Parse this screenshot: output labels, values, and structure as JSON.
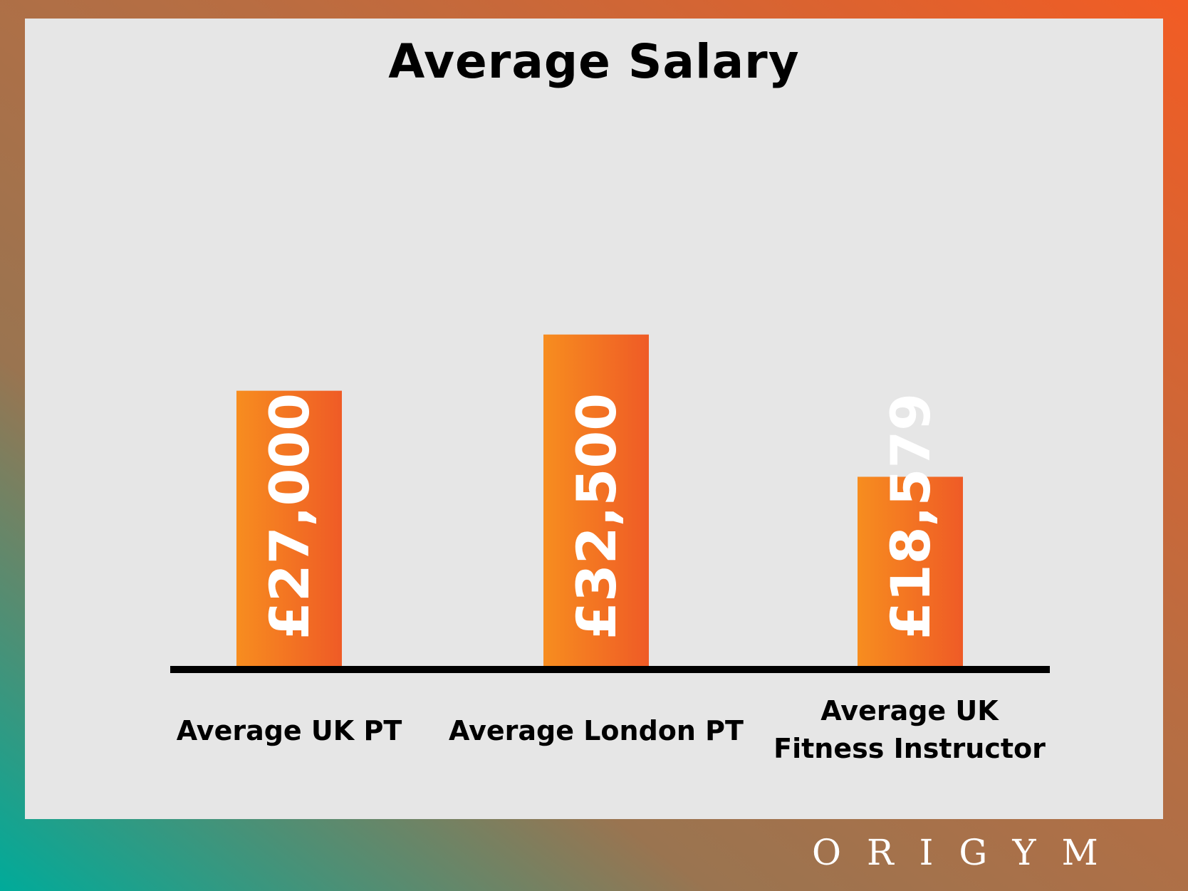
{
  "brand": {
    "logo_text": "ORIGYM"
  },
  "colors": {
    "bar_start": "#f78d1f",
    "bar_end": "#ef5b26",
    "panel": "#e6e6e6",
    "axis": "#000000",
    "value_text": "#ffffff"
  },
  "chart_data": {
    "type": "bar",
    "title": "Average Salary",
    "xlabel": "",
    "ylabel": "",
    "categories": [
      "Average UK PT",
      "Average London PT",
      "Average UK Fitness Instructor"
    ],
    "category_lines": [
      [
        "Average UK PT"
      ],
      [
        "Average London PT"
      ],
      [
        "Average UK",
        "Fitness Instructor"
      ]
    ],
    "values": [
      27000,
      32500,
      18579
    ],
    "value_labels": [
      "£27,000",
      "£32,500",
      "£18,579"
    ],
    "ylim": [
      0,
      46000
    ],
    "grid": false,
    "legend": "none"
  }
}
